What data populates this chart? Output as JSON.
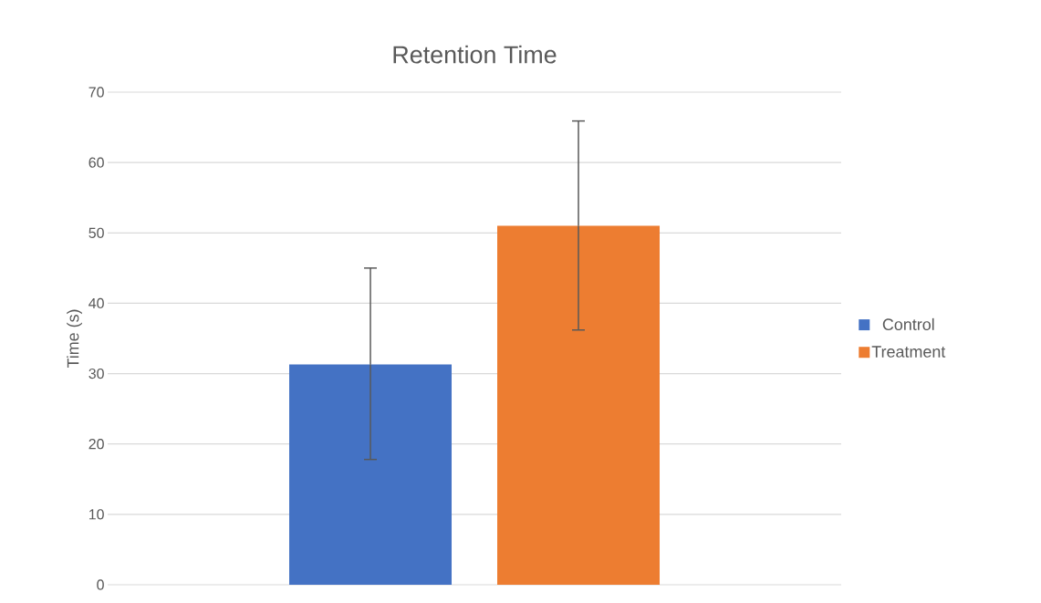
{
  "chart_data": {
    "type": "bar",
    "title": "Retention Time",
    "ylabel": "Time (s)",
    "categories": [
      null
    ],
    "series": [
      {
        "name": "Control",
        "color": "#4472c4",
        "values": [
          31.3
        ],
        "errors": [
          [
            17.8,
            45.0
          ]
        ]
      },
      {
        "name": "Treatment",
        "color": "#ed7d31",
        "values": [
          51.0
        ],
        "errors": [
          [
            36.2,
            65.9
          ]
        ]
      }
    ],
    "ylim": [
      0,
      70
    ],
    "yticks": [
      0,
      10,
      20,
      30,
      40,
      50,
      60,
      70
    ],
    "grid": "y",
    "legend": "right"
  }
}
